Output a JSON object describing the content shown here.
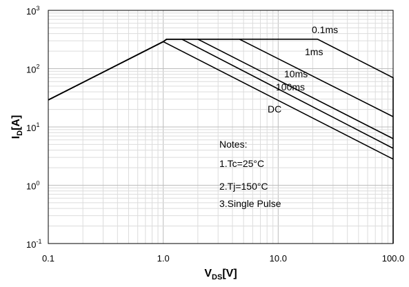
{
  "chart_data": {
    "type": "line",
    "x_scale": "log",
    "y_scale": "log",
    "xlim": [
      0.1,
      100
    ],
    "ylim": [
      0.1,
      1000
    ],
    "grid": true,
    "xlabel": {
      "main": "V",
      "sub": "DS",
      "unit": "[V]"
    },
    "ylabel": {
      "main": "I",
      "sub": "D",
      "unit": "[A]"
    },
    "x_ticks": [
      {
        "value": 0.1,
        "label": "0.1"
      },
      {
        "value": 1,
        "label": "1.0"
      },
      {
        "value": 10,
        "label": "10.0"
      },
      {
        "value": 100,
        "label": "100.0"
      }
    ],
    "y_ticks": [
      {
        "value": 0.1,
        "base": "10",
        "exp": "-1"
      },
      {
        "value": 1,
        "base": "10",
        "exp": "0"
      },
      {
        "value": 10,
        "base": "10",
        "exp": "1"
      },
      {
        "value": 100,
        "base": "10",
        "exp": "2"
      },
      {
        "value": 1000,
        "base": "10",
        "exp": "3"
      }
    ],
    "series": [
      {
        "name": "DC",
        "points": [
          [
            0.1,
            29
          ],
          [
            1.0,
            290
          ],
          [
            100,
            2.8
          ]
        ],
        "label_at": [
          388,
          163
        ]
      },
      {
        "name": "100ms",
        "points": [
          [
            0.1,
            29
          ],
          [
            1.0,
            290
          ],
          [
            1.07,
            320
          ],
          [
            1.45,
            320
          ],
          [
            100,
            4.3
          ]
        ],
        "label_at": [
          400,
          131
        ]
      },
      {
        "name": "10ms",
        "points": [
          [
            0.1,
            29
          ],
          [
            1.0,
            290
          ],
          [
            1.07,
            320
          ],
          [
            2.0,
            320
          ],
          [
            100,
            6.3
          ]
        ],
        "label_at": [
          412,
          112
        ]
      },
      {
        "name": "1ms",
        "points": [
          [
            0.1,
            29
          ],
          [
            1.0,
            290
          ],
          [
            1.07,
            320
          ],
          [
            4.6,
            320
          ],
          [
            100,
            15
          ]
        ],
        "label_at": [
          442,
          80
        ]
      },
      {
        "name": "0.1ms",
        "points": [
          [
            0.1,
            29
          ],
          [
            1.0,
            290
          ],
          [
            1.07,
            320
          ],
          [
            22,
            320
          ],
          [
            100,
            70
          ],
          [
            100,
            0.1
          ]
        ],
        "label_at": [
          452,
          48
        ]
      }
    ],
    "notes": [
      "Notes:",
      "1.Tc=25°C",
      "2.Tj=150°C",
      "3.Single Pulse"
    ]
  }
}
